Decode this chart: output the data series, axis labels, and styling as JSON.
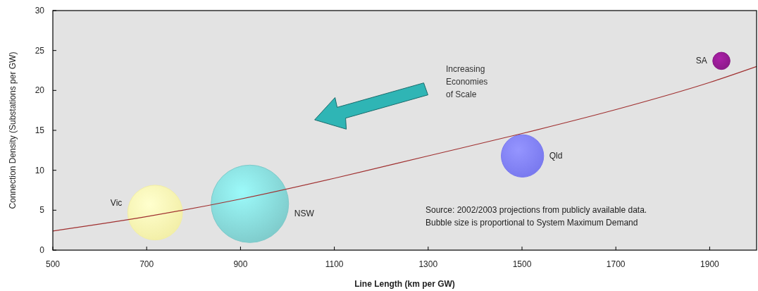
{
  "chart_data": {
    "type": "bubble",
    "xlabel": "Line Length (km per GW)",
    "ylabel": "Connection Density (Substations per GW)",
    "xlim": [
      500,
      2000
    ],
    "xticks": [
      500,
      700,
      900,
      1100,
      1300,
      1500,
      1700,
      1900
    ],
    "ylim": [
      0,
      30
    ],
    "yticks": [
      0,
      5,
      10,
      15,
      20,
      25,
      30
    ],
    "grid": false,
    "series": [
      {
        "name": "Vic",
        "color": "#f2eea6",
        "x": [
          718
        ],
        "values": [
          4.7
        ],
        "sizes": [
          0.5
        ]
      },
      {
        "name": "NSW",
        "color": "#7ecaca",
        "x": [
          920
        ],
        "values": [
          5.8
        ],
        "sizes": [
          1
        ]
      },
      {
        "name": "Qld",
        "color": "#7878ee",
        "x": [
          1501
        ],
        "values": [
          11.8
        ],
        "sizes": [
          0.3
        ]
      },
      {
        "name": "SA",
        "color": "#8a1a88",
        "x": [
          1925
        ],
        "values": [
          23.7
        ],
        "sizes": [
          0.05
        ]
      },
      {
        "type": "line",
        "color": "#a03030",
        "x": [
          500,
          700,
          900,
          1100,
          1300,
          1500,
          1700,
          1900,
          2000
        ],
        "values": [
          2.4,
          4.2,
          6.4,
          9.0,
          11.8,
          14.6,
          17.6,
          21.0,
          23.0
        ]
      }
    ],
    "annotations": [
      "Increasing Economies of Scale",
      "Source: 2002/2003 projections from publicly available data.",
      "Bubble size is proportional to System Maximum Demand"
    ]
  }
}
